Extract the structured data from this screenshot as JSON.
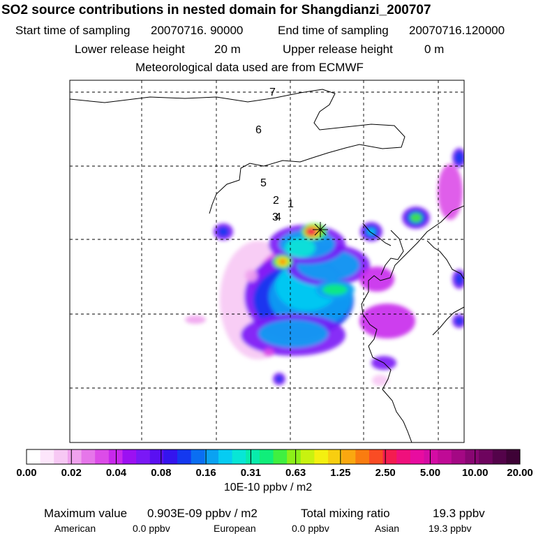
{
  "header": {
    "title": "SO2 source contributions in nested domain for Shangdianzi_200707",
    "start_label": "Start time of sampling",
    "start_value": "20070716. 90000",
    "end_label": "End time of sampling",
    "end_value": "20070716.120000",
    "lower_label": "Lower release height",
    "lower_value": "20 m",
    "upper_label": "Upper release height",
    "upper_value": "0 m",
    "meteo": "Meteorological data used are from ECMWF"
  },
  "chart_data": {
    "type": "heatmap",
    "title": "SO2 source contributions in nested domain for Shangdianzi_200707",
    "colorbar_ticks": [
      "0.00",
      "0.02",
      "0.04",
      "0.08",
      "0.16",
      "0.31",
      "0.63",
      "1.25",
      "2.50",
      "5.00",
      "10.00",
      "20.00"
    ],
    "colorbar_unit": "10E-10 ppbv / m2",
    "colors": [
      "#ffffff",
      "#fde6fb",
      "#f7c8f4",
      "#f0a2ee",
      "#e676ea",
      "#dc4ce8",
      "#c828ec",
      "#9c10f2",
      "#7a18f6",
      "#5a10f2",
      "#3414ee",
      "#1438f0",
      "#0a6ef2",
      "#0aa2f2",
      "#06ccf2",
      "#08e6d6",
      "#08ecac",
      "#10ee7a",
      "#40f040",
      "#8cf018",
      "#c8f210",
      "#f4f010",
      "#f8ce10",
      "#faa810",
      "#fa7c10",
      "#fa4c24",
      "#f41c50",
      "#f0107c",
      "#e80ca0",
      "#d40ca4",
      "#c00a96",
      "#a40884",
      "#880672",
      "#6e045e",
      "#54034a",
      "#3e0236"
    ],
    "trajectory_points": [
      {
        "label": "1",
        "hour": 1
      },
      {
        "label": "2",
        "hour": 2
      },
      {
        "label": "3",
        "hour": 3
      },
      {
        "label": "4",
        "hour": 4
      },
      {
        "label": "5",
        "hour": 5
      },
      {
        "label": "6",
        "hour": 6
      },
      {
        "label": "7",
        "hour": 7
      }
    ],
    "station": "Shangdianzi",
    "grid": true
  },
  "footer": {
    "max_label": "Maximum value",
    "max_value": "0.903E-09 ppbv / m2",
    "total_label": "Total mixing ratio",
    "total_value": "19.3 ppbv",
    "american_label": "American",
    "american_value": "0.0 ppbv",
    "european_label": "European",
    "european_value": "0.0 ppbv",
    "asian_label": "Asian",
    "asian_value": "19.3 ppbv"
  }
}
